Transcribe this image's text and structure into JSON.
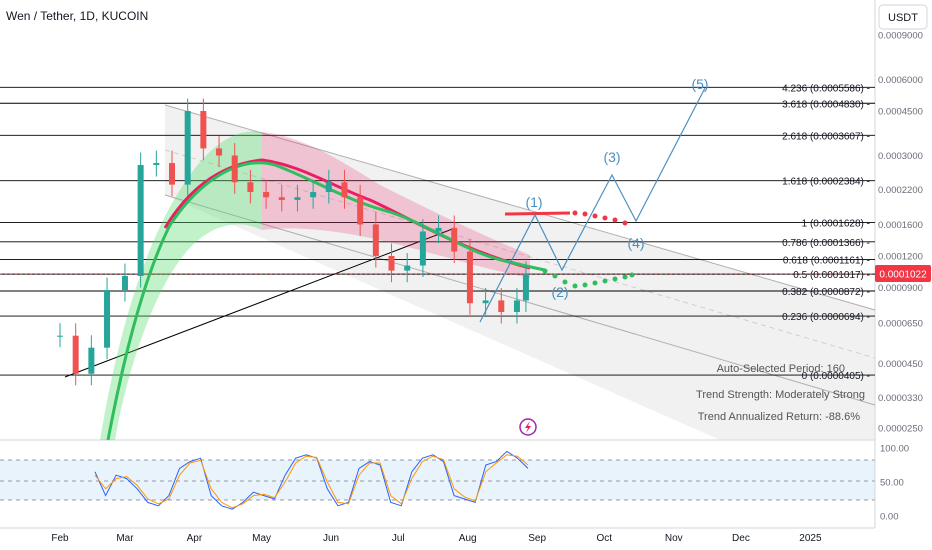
{
  "header": {
    "title": "Wen / Tether, 1D, KUCOIN",
    "currency_button": "USDT"
  },
  "colors": {
    "up": "#26a69a",
    "down": "#ef5350",
    "ma_green": "#2ebd5f",
    "ma_red": "#e91e63",
    "wave": "#4a90c2",
    "price_tag": "#f23645",
    "fib_line": "#000000",
    "stoch_blue": "#2962ff",
    "stoch_orange": "#ff9800"
  },
  "chart_data": [
    {
      "type": "line",
      "title": "Wen / Tether, 1D, KUCOIN",
      "y_scale": "log",
      "x_ticks": [
        "Feb",
        "Mar",
        "Apr",
        "May",
        "Jun",
        "Jul",
        "Aug",
        "Sep",
        "Oct",
        "Nov",
        "Dec",
        "2025"
      ],
      "y_ticks": [
        "0.0009000",
        "0.0006000",
        "0.0004500",
        "0.0003000",
        "0.0002200",
        "0.0001600",
        "0.0001200",
        "0.0000900",
        "0.0000650",
        "0.0000450",
        "0.0000330",
        "0.0000250"
      ],
      "current_price": "0.0001022",
      "fib_levels": [
        {
          "label": "4.236 (0.0005586)",
          "value": 0.0005586
        },
        {
          "label": "3.618 (0.0004830)",
          "value": 0.000483
        },
        {
          "label": "2.618 (0.0003607)",
          "value": 0.0003607
        },
        {
          "label": "1.618 (0.0002384)",
          "value": 0.0002384
        },
        {
          "label": "1 (0.0001628)",
          "value": 0.0001628
        },
        {
          "label": "0.786 (0.0001366)",
          "value": 0.0001366
        },
        {
          "label": "0.618 (0.0001161)",
          "value": 0.0001161
        },
        {
          "label": "0.5 (0.0001017)",
          "value": 0.0001017
        },
        {
          "label": "0.382 (0.0000872)",
          "value": 8.72e-05
        },
        {
          "label": "0.236 (0.0000694)",
          "value": 6.94e-05
        },
        {
          "label": "0 (0.0000405)",
          "value": 4.05e-05
        }
      ],
      "wave_labels": [
        "(1)",
        "(2)",
        "(3)",
        "(4)",
        "(5)"
      ],
      "info_box": [
        "Auto-Selected Period: 160",
        "Trend Strength: Moderately Strong",
        "Trend Annualized Return: -88.6%"
      ],
      "price_series": {
        "name": "",
        "x": [
          "2024-02-01",
          "2024-02-08",
          "2024-02-15",
          "2024-02-22",
          "2024-03-01",
          "2024-03-08",
          "2024-03-15",
          "2024-03-22",
          "2024-03-29",
          "2024-04-05",
          "2024-04-12",
          "2024-04-19",
          "2024-04-26",
          "2024-05-03",
          "2024-05-10",
          "2024-05-17",
          "2024-05-24",
          "2024-05-31",
          "2024-06-07",
          "2024-06-14",
          "2024-06-21",
          "2024-06-28",
          "2024-07-05",
          "2024-07-12",
          "2024-07-19",
          "2024-07-26",
          "2024-08-02",
          "2024-08-09",
          "2024-08-16",
          "2024-08-23",
          "2024-08-27"
        ],
        "y": [
          5.8e-05,
          4.1e-05,
          5.2e-05,
          8.8e-05,
          0.0001,
          0.000275,
          0.00028,
          0.00023,
          0.00045,
          0.00032,
          0.0003,
          0.000235,
          0.000215,
          0.000205,
          0.0002,
          0.000205,
          0.000215,
          0.000235,
          0.000205,
          0.00016,
          0.00012,
          0.000105,
          0.00011,
          0.00015,
          0.000155,
          0.000125,
          7.8e-05,
          8e-05,
          7.2e-05,
          8e-05,
          0.000102
        ]
      }
    },
    {
      "type": "line",
      "title": "",
      "y_ticks": [
        "100.00",
        "50.00",
        "0.00"
      ],
      "y_range": [
        0,
        100
      ],
      "series": [
        {
          "name": "",
          "color": "#2962ff",
          "values": [
            65,
            30,
            60,
            55,
            40,
            20,
            15,
            30,
            70,
            80,
            85,
            30,
            15,
            10,
            20,
            35,
            30,
            25,
            60,
            85,
            90,
            85,
            40,
            15,
            20,
            70,
            80,
            75,
            20,
            15,
            65,
            85,
            90,
            80,
            30,
            25,
            20,
            75,
            80,
            95,
            85,
            70
          ]
        },
        {
          "name": "",
          "color": "#ff9800",
          "values": [
            60,
            40,
            55,
            58,
            45,
            25,
            18,
            25,
            60,
            78,
            82,
            40,
            20,
            12,
            18,
            30,
            32,
            27,
            50,
            78,
            88,
            86,
            50,
            20,
            18,
            60,
            78,
            78,
            30,
            18,
            55,
            80,
            88,
            83,
            40,
            28,
            22,
            65,
            78,
            90,
            88,
            75
          ]
        }
      ]
    }
  ]
}
